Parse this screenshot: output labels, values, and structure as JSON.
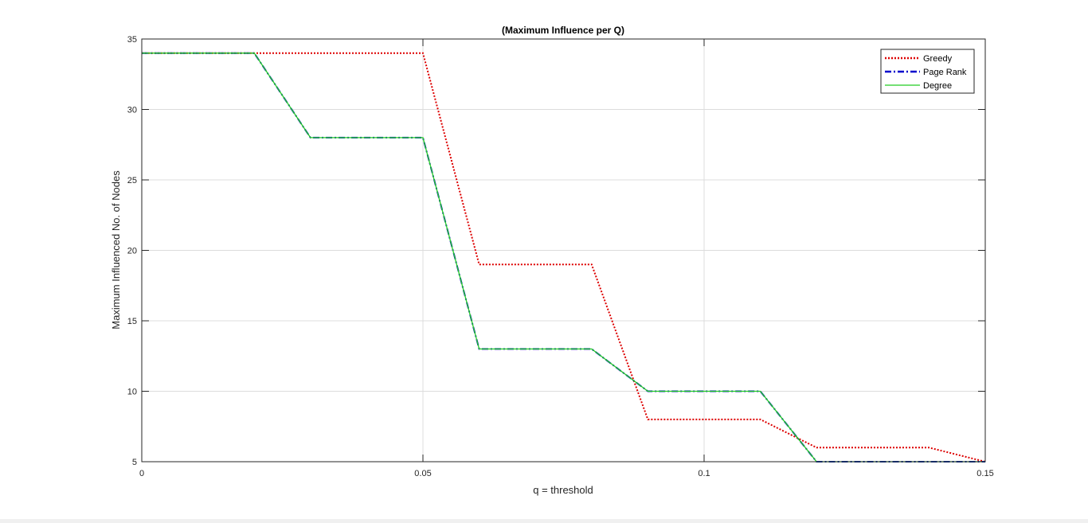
{
  "chart_data": {
    "type": "line",
    "title": "(Maximum Influence per Q)",
    "xlabel": "q = threshold",
    "ylabel": "Maximum Influenced No. of Nodes",
    "xlim": [
      0,
      0.15
    ],
    "ylim": [
      5,
      35
    ],
    "xticks": [
      0,
      0.05,
      0.1,
      0.15
    ],
    "xtick_labels": [
      "0",
      "0.05",
      "0.1",
      "0.15"
    ],
    "yticks": [
      5,
      10,
      15,
      20,
      25,
      30,
      35
    ],
    "ytick_labels": [
      "5",
      "10",
      "15",
      "20",
      "25",
      "30",
      "35"
    ],
    "grid": true,
    "legend_position": "top-right",
    "x": [
      0,
      0.01,
      0.02,
      0.03,
      0.04,
      0.05,
      0.06,
      0.07,
      0.08,
      0.09,
      0.1,
      0.11,
      0.12,
      0.13,
      0.14,
      0.15
    ],
    "series": [
      {
        "name": "Greedy",
        "color": "#dd0000",
        "dash": "dotted",
        "values": [
          34,
          34,
          34,
          34,
          34,
          34,
          19,
          19,
          19,
          8,
          8,
          8,
          6,
          6,
          6,
          5
        ]
      },
      {
        "name": "Page Rank",
        "color": "#0000cc",
        "dash": "dashdot",
        "values": [
          34,
          34,
          34,
          28,
          28,
          28,
          13,
          13,
          13,
          10,
          10,
          10,
          5,
          5,
          5,
          5
        ]
      },
      {
        "name": "Degree",
        "color": "#22cc22",
        "dash": "solid",
        "values": [
          34,
          34,
          34,
          28,
          28,
          28,
          13,
          13,
          13,
          10,
          10,
          10,
          5,
          5,
          5,
          5
        ]
      }
    ]
  }
}
